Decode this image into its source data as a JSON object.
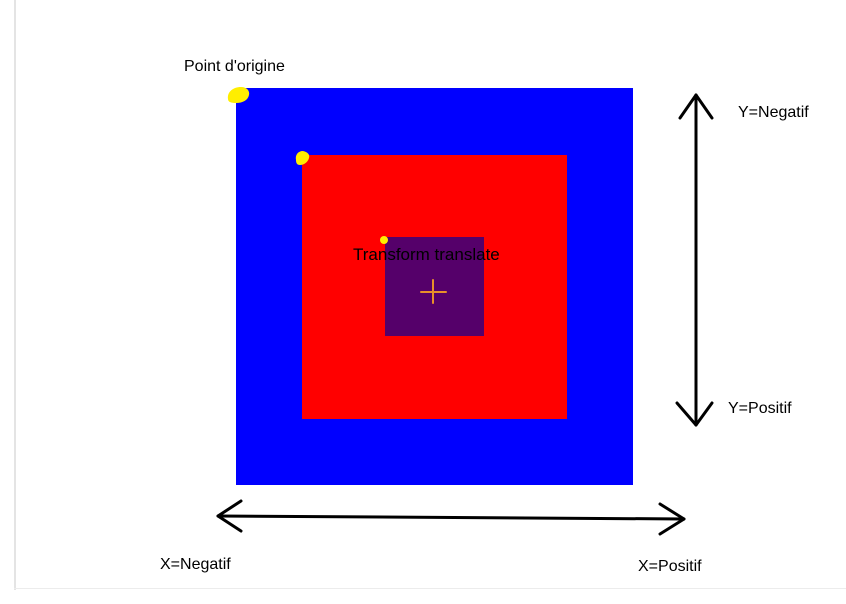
{
  "labels": {
    "origin": "Point d'origine",
    "translate": "Transform translate",
    "y_negative": "Y=Negatif",
    "y_positive": "Y=Positif",
    "x_negative": "X=Negatif",
    "x_positive": "X=Positif"
  },
  "colors": {
    "outer_square": "#0000ff",
    "middle_square": "#ff0000",
    "inner_square": "#55006a",
    "origin_marker": "#ffee00",
    "center_cross": "#e8902a",
    "arrows": "#000000"
  },
  "icons": {
    "center_marker": "plus-cross",
    "origin_marker": "dot",
    "axis_arrow": "double-headed-arrow"
  }
}
